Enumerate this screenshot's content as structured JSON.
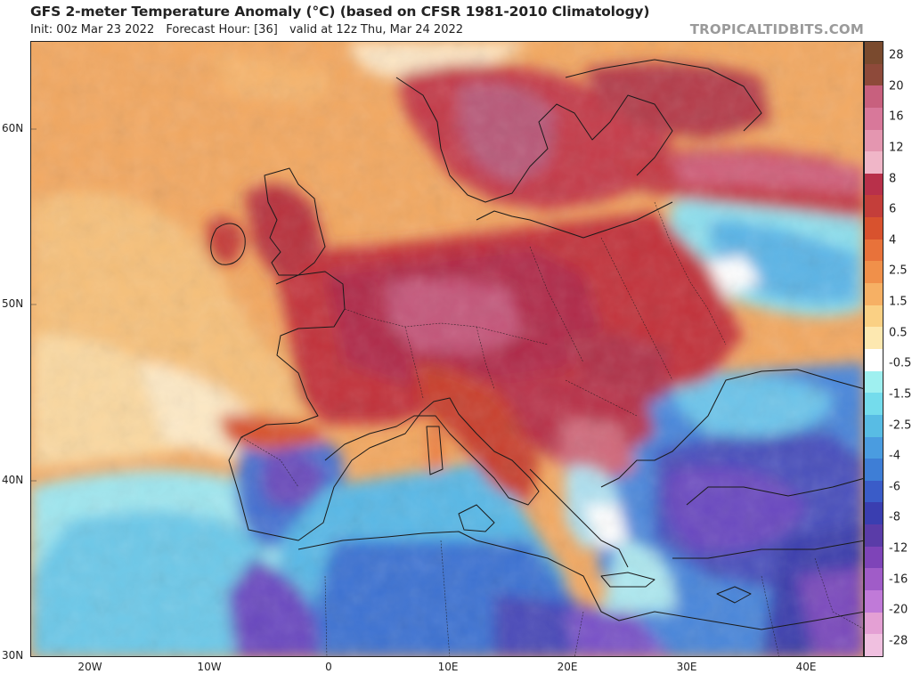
{
  "header": {
    "title": "GFS 2-meter Temperature Anomaly (°C) (based on CFSR 1981-2010 Climatology)",
    "init": "Init: 00z Mar 23 2022",
    "forecast_hour": "Forecast Hour: [36]",
    "valid": "valid at 12z Thu, Mar 24 2022",
    "brand": "TROPICALTIDBITS.COM"
  },
  "map": {
    "lat_ticks": [
      "60N",
      "50N",
      "40N",
      "30N"
    ],
    "lon_ticks": [
      "20W",
      "10W",
      "0",
      "10E",
      "20E",
      "30E",
      "40E"
    ],
    "lat_range_deg": [
      30,
      65
    ],
    "lon_range_deg": [
      -25,
      45
    ]
  },
  "colorbar": {
    "labels": [
      "28",
      "20",
      "16",
      "12",
      "8",
      "6",
      "4",
      "2.5",
      "1.5",
      "0.5",
      "-0.5",
      "-1.5",
      "-2.5",
      "-4",
      "-6",
      "-8",
      "-12",
      "-16",
      "-20",
      "-28"
    ],
    "colors": [
      "#7a4a2e",
      "#8e4a3a",
      "#c8607e",
      "#d8789a",
      "#e496b0",
      "#f0b6c8",
      "#b8304a",
      "#c43e3a",
      "#d8522e",
      "#e8723a",
      "#f0904a",
      "#f6b064",
      "#fad084",
      "#fde8b0",
      "#ffffff",
      "#9ff0f0",
      "#74dcec",
      "#58bce4",
      "#4a9ce0",
      "#3e7ed6",
      "#3a5cc8",
      "#3a3eb0",
      "#5a3ca8",
      "#7e44b8",
      "#a05cc8",
      "#c07ad8",
      "#e4a0d4",
      "#f0c0e0"
    ]
  }
}
